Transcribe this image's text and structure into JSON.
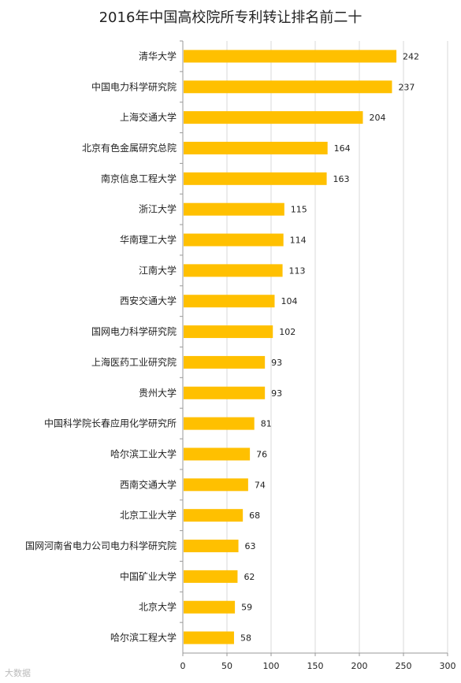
{
  "chart_data": {
    "type": "bar",
    "orientation": "horizontal",
    "title": "2016年中国高校院所专利转让排名前二十",
    "categories": [
      "清华大学",
      "中国电力科学研究院",
      "上海交通大学",
      "北京有色金属研究总院",
      "南京信息工程大学",
      "浙江大学",
      "华南理工大学",
      "江南大学",
      "西安交通大学",
      "国网电力科学研究院",
      "上海医药工业研究院",
      "贵州大学",
      "中国科学院长春应用化学研究所",
      "哈尔滨工业大学",
      "西南交通大学",
      "北京工业大学",
      "国网河南省电力公司电力科学研究院",
      "中国矿业大学",
      "北京大学",
      "哈尔滨工程大学"
    ],
    "values": [
      242,
      237,
      204,
      164,
      163,
      115,
      114,
      113,
      104,
      102,
      93,
      93,
      81,
      76,
      74,
      68,
      63,
      62,
      59,
      58
    ],
    "xlim": [
      0,
      300
    ],
    "xticks": [
      0,
      50,
      100,
      150,
      200,
      250,
      300
    ],
    "grid": "vertical",
    "bar_color": "#FFC000"
  },
  "watermark": "大数据"
}
